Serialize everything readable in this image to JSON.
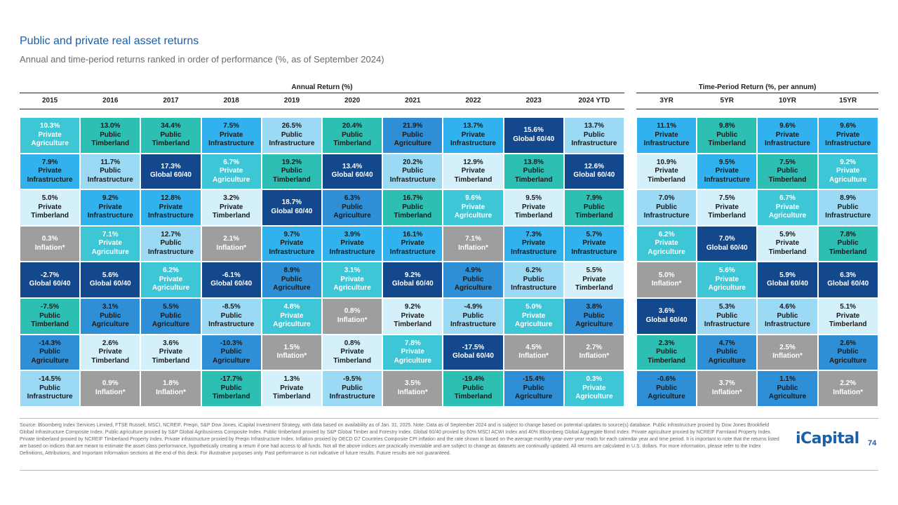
{
  "page": {
    "title": "Public and private real asset returns",
    "subtitle": "Annual and time-period returns ranked in order of performance (%, as of September 2024)",
    "annual_group": "Annual Return (%)",
    "period_group": "Time-Period Return (%, per annum)",
    "footnote": "Source: Bloomberg Index Services Limited, FTSE Russell, MSCI, NCREIF, Preqin, S&P Dow Jones, iCapital Investment Strategy, with data based on availability as of Jan. 31, 2025. Note: Data as of September 2024 and is subject to change based on potential updates to source(s) database. Public infrastructure proxied by Dow Jones Brookfield Global Infrastructure Composite Index. Public agriculture proxied by S&P Global Agribusiness Composite Index. Public timberland proxied by S&P Global Timber and Forestry Index. Global 60/40 proxied by 60% MSCI ACWI Index and 40% Bloomberg Global Aggregate Bond Index. Private agriculture proxied by NCREIF Farmland Property Index. Private timberland proxied by NCREIF Timberland Property Index. Private infrastructure proxied by Preqin Infrastructure Index. Inflation proxied by OECD G7 Countries Composite CPI inflation and the rate shown is based on the average monthly year-over-year reads for each calendar year and time period. It is important to note that the returns listed are based on indices that are meant to estimate the asset class performance, hypothetically creating a return if one had access to all funds. Not all the above indices are practically investable and are subject to change as datasets are continually updated. All returns are calculated in U.S. dollars. For more information, please refer to the Index Definitions, Attributions, and Important Information sections at the end of this deck. For illustrative purposes only. Past performance is not indicative of future results. Future results are not guaranteed.",
    "logo": "iCapital",
    "page_number": "74"
  },
  "colors": {
    "Private Agriculture": "#3cc6d6",
    "Public Timberland": "#2dbfb3",
    "Private Infrastructure": "#31b2ee",
    "Public Infrastructure": "#9cd9f5",
    "Public Agriculture": "#2f8fd6",
    "Private Timberland": "#d4f0fa",
    "Global 60/40": "#13498c",
    "Inflation*": "#9e9e9e"
  },
  "text_colors": {
    "Private Agriculture": "#ffffff",
    "Public Timberland": "#1a1a1a",
    "Private Infrastructure": "#1a1a1a",
    "Public Infrastructure": "#1a1a1a",
    "Public Agriculture": "#1a1a1a",
    "Private Timberland": "#1a1a1a",
    "Global 60/40": "#ffffff",
    "Inflation*": "#ffffff"
  },
  "chart_data": {
    "type": "table",
    "annual_columns": [
      "2015",
      "2016",
      "2017",
      "2018",
      "2019",
      "2020",
      "2021",
      "2022",
      "2023",
      "2024 YTD"
    ],
    "period_columns": [
      "3YR",
      "5YR",
      "10YR",
      "15YR"
    ],
    "annual": [
      [
        [
          "10.3%",
          "Private Agriculture"
        ],
        [
          "7.9%",
          "Private Infrastructure"
        ],
        [
          "5.0%",
          "Private Timberland"
        ],
        [
          "0.3%",
          "Inflation*"
        ],
        [
          "-2.7%",
          "Global 60/40"
        ],
        [
          "-7.5%",
          "Public Timberland"
        ],
        [
          "-14.3%",
          "Public Agriculture"
        ],
        [
          "-14.5%",
          "Public Infrastructure"
        ]
      ],
      [
        [
          "13.0%",
          "Public Timberland"
        ],
        [
          "11.7%",
          "Public Infrastructure"
        ],
        [
          "9.2%",
          "Private Infrastructure"
        ],
        [
          "7.1%",
          "Private Agriculture"
        ],
        [
          "5.6%",
          "Global 60/40"
        ],
        [
          "3.1%",
          "Public Agriculture"
        ],
        [
          "2.6%",
          "Private Timberland"
        ],
        [
          "0.9%",
          "Inflation*"
        ]
      ],
      [
        [
          "34.4%",
          "Public Timberland"
        ],
        [
          "17.3%",
          "Global 60/40"
        ],
        [
          "12.8%",
          "Private Infrastructure"
        ],
        [
          "12.7%",
          "Public Infrastructure"
        ],
        [
          "6.2%",
          "Private Agriculture"
        ],
        [
          "5.5%",
          "Public Agriculture"
        ],
        [
          "3.6%",
          "Private Timberland"
        ],
        [
          "1.8%",
          "Inflation*"
        ]
      ],
      [
        [
          "7.5%",
          "Private Infrastructure"
        ],
        [
          "6.7%",
          "Private Agriculture"
        ],
        [
          "3.2%",
          "Private Timberland"
        ],
        [
          "2.1%",
          "Inflation*"
        ],
        [
          "-6.1%",
          "Global 60/40"
        ],
        [
          "-8.5%",
          "Public Infrastructure"
        ],
        [
          "-10.3%",
          "Public Agriculture"
        ],
        [
          "-17.7%",
          "Public Timberland"
        ]
      ],
      [
        [
          "26.5%",
          "Public Infrastructure"
        ],
        [
          "19.2%",
          "Public Timberland"
        ],
        [
          "18.7%",
          "Global 60/40"
        ],
        [
          "9.7%",
          "Private Infrastructure"
        ],
        [
          "8.9%",
          "Public Agriculture"
        ],
        [
          "4.8%",
          "Private Agriculture"
        ],
        [
          "1.5%",
          "Inflation*"
        ],
        [
          "1.3%",
          "Private Timberland"
        ]
      ],
      [
        [
          "20.4%",
          "Public Timberland"
        ],
        [
          "13.4%",
          "Global 60/40"
        ],
        [
          "6.3%",
          "Public Agriculture"
        ],
        [
          "3.9%",
          "Private Infrastructure"
        ],
        [
          "3.1%",
          "Private Agriculture"
        ],
        [
          "0.8%",
          "Inflation*"
        ],
        [
          "0.8%",
          "Private Timberland"
        ],
        [
          "-9.5%",
          "Public Infrastructure"
        ]
      ],
      [
        [
          "21.9%",
          "Public Agriculture"
        ],
        [
          "20.2%",
          "Public Infrastructure"
        ],
        [
          "16.7%",
          "Public Timberland"
        ],
        [
          "16.1%",
          "Private Infrastructure"
        ],
        [
          "9.2%",
          "Global 60/40"
        ],
        [
          "9.2%",
          "Private Timberland"
        ],
        [
          "7.8%",
          "Private Agriculture"
        ],
        [
          "3.5%",
          "Inflation*"
        ]
      ],
      [
        [
          "13.7%",
          "Private Infrastructure"
        ],
        [
          "12.9%",
          "Private Timberland"
        ],
        [
          "9.6%",
          "Private Agriculture"
        ],
        [
          "7.1%",
          "Inflation*"
        ],
        [
          "4.9%",
          "Public Agriculture"
        ],
        [
          "-4.9%",
          "Public Infrastructure"
        ],
        [
          "-17.5%",
          "Global 60/40"
        ],
        [
          "-19.4%",
          "Public Timberland"
        ]
      ],
      [
        [
          "15.6%",
          "Global 60/40"
        ],
        [
          "13.8%",
          "Public Timberland"
        ],
        [
          "9.5%",
          "Private Timberland"
        ],
        [
          "7.3%",
          "Private Infrastructure"
        ],
        [
          "6.2%",
          "Public Infrastructure"
        ],
        [
          "5.0%",
          "Private Agriculture"
        ],
        [
          "4.5%",
          "Inflation*"
        ],
        [
          "-15.4%",
          "Public Agriculture"
        ]
      ],
      [
        [
          "13.7%",
          "Public Infrastructure"
        ],
        [
          "12.6%",
          "Global 60/40"
        ],
        [
          "7.9%",
          "Public Timberland"
        ],
        [
          "5.7%",
          "Private Infrastructure"
        ],
        [
          "5.5%",
          "Private Timberland"
        ],
        [
          "3.8%",
          "Public Agriculture"
        ],
        [
          "2.7%",
          "Inflation*"
        ],
        [
          "0.3%",
          "Private Agriculture"
        ]
      ]
    ],
    "period": [
      [
        [
          "11.1%",
          "Private Infrastructure"
        ],
        [
          "10.9%",
          "Private Timberland"
        ],
        [
          "7.0%",
          "Public Infrastructure"
        ],
        [
          "6.2%",
          "Private Agriculture"
        ],
        [
          "5.0%",
          "Inflation*"
        ],
        [
          "3.6%",
          "Global 60/40"
        ],
        [
          "2.3%",
          "Public Timberland"
        ],
        [
          "-0.6%",
          "Public Agriculture"
        ]
      ],
      [
        [
          "9.8%",
          "Public Timberland"
        ],
        [
          "9.5%",
          "Private Infrastructure"
        ],
        [
          "7.5%",
          "Private Timberland"
        ],
        [
          "7.0%",
          "Global 60/40"
        ],
        [
          "5.6%",
          "Private Agriculture"
        ],
        [
          "5.3%",
          "Public Infrastructure"
        ],
        [
          "4.7%",
          "Public Agriculture"
        ],
        [
          "3.7%",
          "Inflation*"
        ]
      ],
      [
        [
          "9.6%",
          "Private Infrastructure"
        ],
        [
          "7.5%",
          "Public Timberland"
        ],
        [
          "6.7%",
          "Private Agriculture"
        ],
        [
          "5.9%",
          "Private Timberland"
        ],
        [
          "5.9%",
          "Global 60/40"
        ],
        [
          "4.6%",
          "Public Infrastructure"
        ],
        [
          "2.5%",
          "Inflation*"
        ],
        [
          "1.1%",
          "Public Agriculture"
        ]
      ],
      [
        [
          "9.6%",
          "Private Infrastructure"
        ],
        [
          "9.2%",
          "Private Agriculture"
        ],
        [
          "8.9%",
          "Public Infrastructure"
        ],
        [
          "7.8%",
          "Public Timberland"
        ],
        [
          "6.3%",
          "Global 60/40"
        ],
        [
          "5.1%",
          "Private Timberland"
        ],
        [
          "2.6%",
          "Public Agriculture"
        ],
        [
          "2.2%",
          "Inflation*"
        ]
      ]
    ]
  }
}
